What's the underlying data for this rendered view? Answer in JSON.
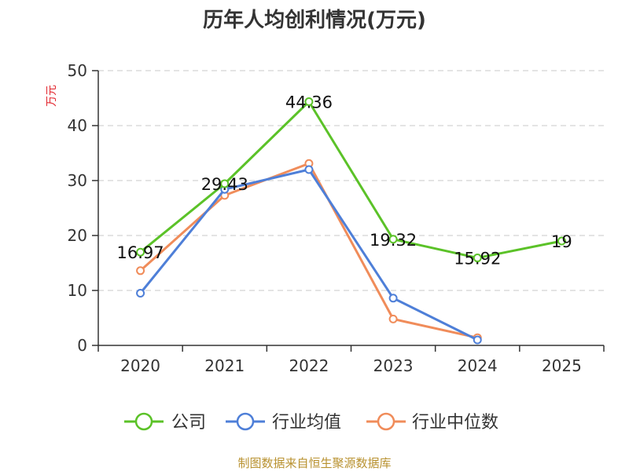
{
  "chart_data": {
    "type": "line",
    "title": "历年人均创利情况(万元)",
    "ylabel": "万元",
    "xlabel": "",
    "categories": [
      "2020",
      "2021",
      "2022",
      "2023",
      "2024",
      "2025"
    ],
    "ylim": [
      0,
      50
    ],
    "yticks": [
      0,
      10,
      20,
      30,
      40,
      50
    ],
    "grid": true,
    "legend_position": "bottom",
    "series": [
      {
        "name": "公司",
        "color": "#5bc228",
        "values": [
          16.97,
          29.43,
          44.36,
          19.32,
          15.92,
          19
        ],
        "labels": [
          "16.97",
          "29.43",
          "44.36",
          "19.32",
          "15.92",
          "19"
        ]
      },
      {
        "name": "行业均值",
        "color": "#4e7fd8",
        "values": [
          9.5,
          28.4,
          32.0,
          8.6,
          1.0,
          null
        ]
      },
      {
        "name": "行业中位数",
        "color": "#f08c5a",
        "values": [
          13.6,
          27.3,
          33.1,
          4.8,
          1.4,
          null
        ]
      }
    ],
    "source": "制图数据来自恒生聚源数据库"
  }
}
